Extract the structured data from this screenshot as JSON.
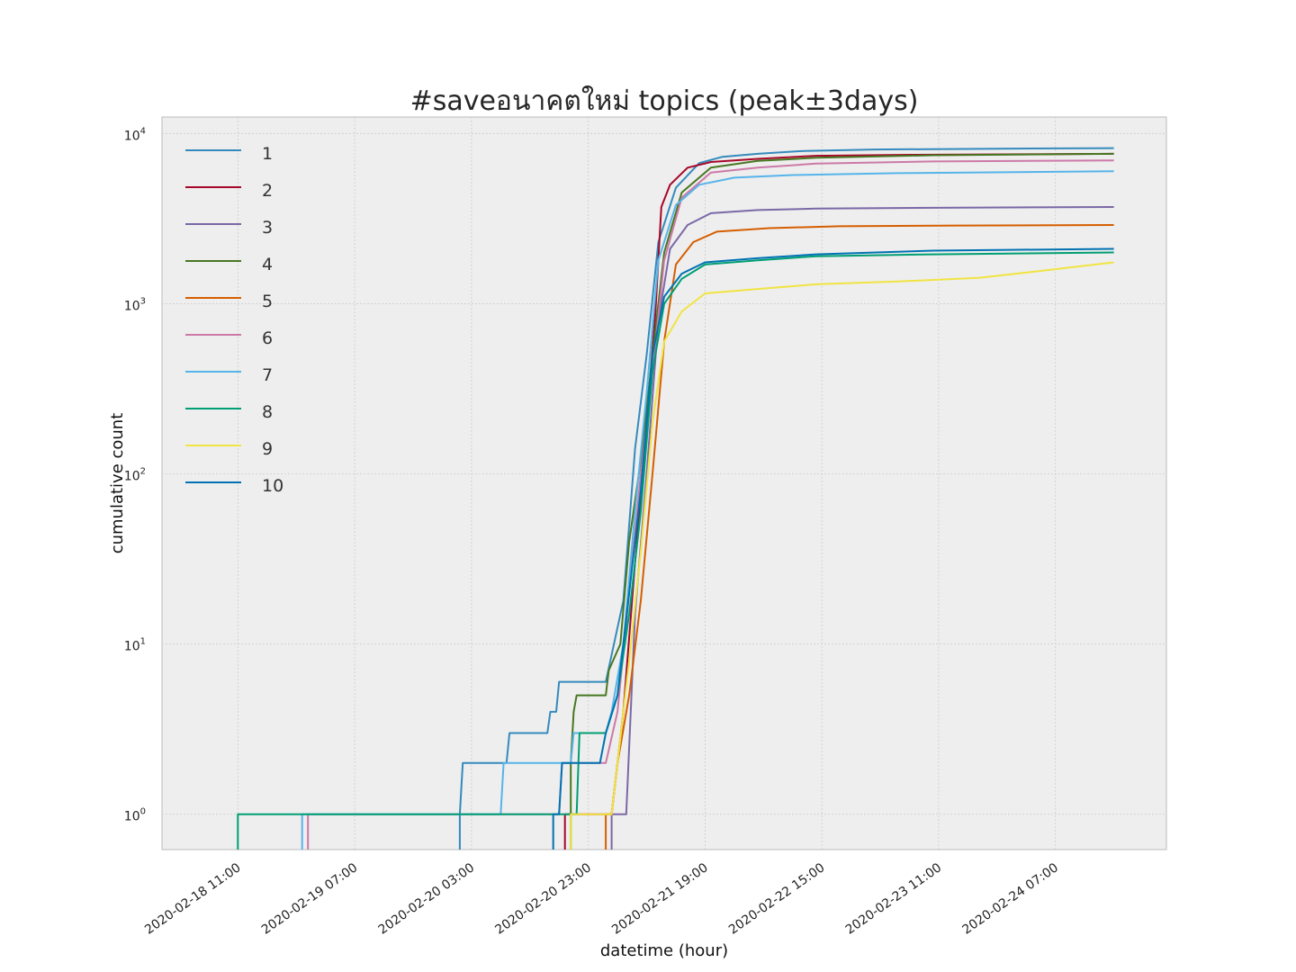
{
  "chart_data": {
    "type": "line",
    "title": "#saveอนาคตใหม่ topics (peak±3days)",
    "xlabel": "datetime (hour)",
    "ylabel": "cumulative count",
    "y_scale": "log",
    "ylim": [
      0.62,
      12500
    ],
    "xlim": [
      "2020-02-17 22:00",
      "2020-02-25 02:00"
    ],
    "grid": true,
    "legend_position": "top-left",
    "x_ticks": [
      "2020-02-18 11:00",
      "2020-02-19 07:00",
      "2020-02-20 03:00",
      "2020-02-20 23:00",
      "2020-02-21 19:00",
      "2020-02-22 15:00",
      "2020-02-23 11:00",
      "2020-02-24 07:00"
    ],
    "y_ticks": [
      {
        "base": "10",
        "exp": "0",
        "value": 1
      },
      {
        "base": "10",
        "exp": "1",
        "value": 10
      },
      {
        "base": "10",
        "exp": "2",
        "value": 100
      },
      {
        "base": "10",
        "exp": "3",
        "value": 1000
      },
      {
        "base": "10",
        "exp": "4",
        "value": 10000
      }
    ],
    "series": [
      {
        "name": "1",
        "color": "#348ABD",
        "points": [
          [
            "2020-02-20 01:00",
            1
          ],
          [
            "2020-02-20 01:30",
            2
          ],
          [
            "2020-02-20 09:00",
            2
          ],
          [
            "2020-02-20 09:30",
            3
          ],
          [
            "2020-02-20 16:00",
            3
          ],
          [
            "2020-02-20 16:30",
            4
          ],
          [
            "2020-02-20 17:30",
            4
          ],
          [
            "2020-02-20 18:00",
            6
          ],
          [
            "2020-02-21 02:00",
            6
          ],
          [
            "2020-02-21 05:00",
            18
          ],
          [
            "2020-02-21 07:00",
            140
          ],
          [
            "2020-02-21 09:00",
            500
          ],
          [
            "2020-02-21 11:00",
            2300
          ],
          [
            "2020-02-21 14:00",
            4800
          ],
          [
            "2020-02-21 18:00",
            6700
          ],
          [
            "2020-02-21 22:00",
            7300
          ],
          [
            "2020-02-22 04:00",
            7600
          ],
          [
            "2020-02-22 12:00",
            7900
          ],
          [
            "2020-02-23 00:00",
            8050
          ],
          [
            "2020-02-24 00:00",
            8150
          ],
          [
            "2020-02-24 17:00",
            8200
          ]
        ]
      },
      {
        "name": "2",
        "color": "#A60628",
        "points": [
          [
            "2020-02-20 19:00",
            1
          ],
          [
            "2020-02-21 03:00",
            1
          ],
          [
            "2020-02-21 05:00",
            4
          ],
          [
            "2020-02-21 07:00",
            30
          ],
          [
            "2020-02-21 09:00",
            200
          ],
          [
            "2020-02-21 10:30",
            900
          ],
          [
            "2020-02-21 11:30",
            3700
          ],
          [
            "2020-02-21 13:00",
            5000
          ],
          [
            "2020-02-21 16:00",
            6300
          ],
          [
            "2020-02-21 20:00",
            6800
          ],
          [
            "2020-02-22 04:00",
            7100
          ],
          [
            "2020-02-22 14:00",
            7400
          ],
          [
            "2020-02-23 06:00",
            7500
          ],
          [
            "2020-02-24 17:00",
            7600
          ]
        ]
      },
      {
        "name": "3",
        "color": "#7A68A6",
        "points": [
          [
            "2020-02-21 03:00",
            1
          ],
          [
            "2020-02-21 05:30",
            1
          ],
          [
            "2020-02-21 07:00",
            15
          ],
          [
            "2020-02-21 09:00",
            100
          ],
          [
            "2020-02-21 11:00",
            800
          ],
          [
            "2020-02-21 13:00",
            2100
          ],
          [
            "2020-02-21 16:00",
            2900
          ],
          [
            "2020-02-21 20:00",
            3400
          ],
          [
            "2020-02-22 04:00",
            3550
          ],
          [
            "2020-02-22 14:00",
            3620
          ],
          [
            "2020-02-23 10:00",
            3660
          ],
          [
            "2020-02-24 17:00",
            3700
          ]
        ]
      },
      {
        "name": "4",
        "color": "#467821",
        "points": [
          [
            "2020-02-20 20:00",
            2
          ],
          [
            "2020-02-20 20:30",
            4
          ],
          [
            "2020-02-20 21:00",
            5
          ],
          [
            "2020-02-21 02:00",
            5
          ],
          [
            "2020-02-21 02:30",
            7
          ],
          [
            "2020-02-21 04:30",
            10
          ],
          [
            "2020-02-21 06:00",
            40
          ],
          [
            "2020-02-21 08:00",
            120
          ],
          [
            "2020-02-21 10:00",
            500
          ],
          [
            "2020-02-21 12:00",
            2000
          ],
          [
            "2020-02-21 15:00",
            4500
          ],
          [
            "2020-02-21 20:00",
            6300
          ],
          [
            "2020-02-22 04:00",
            6900
          ],
          [
            "2020-02-22 14:00",
            7200
          ],
          [
            "2020-02-23 10:00",
            7450
          ],
          [
            "2020-02-24 17:00",
            7600
          ]
        ]
      },
      {
        "name": "5",
        "color": "#D55E00",
        "points": [
          [
            "2020-02-21 02:00",
            1
          ],
          [
            "2020-02-21 03:00",
            1
          ],
          [
            "2020-02-21 04:00",
            2
          ],
          [
            "2020-02-21 06:00",
            5
          ],
          [
            "2020-02-21 08:00",
            18
          ],
          [
            "2020-02-21 10:00",
            100
          ],
          [
            "2020-02-21 12:00",
            600
          ],
          [
            "2020-02-21 14:00",
            1700
          ],
          [
            "2020-02-21 17:00",
            2300
          ],
          [
            "2020-02-21 21:00",
            2650
          ],
          [
            "2020-02-22 06:00",
            2780
          ],
          [
            "2020-02-22 18:00",
            2850
          ],
          [
            "2020-02-23 14:00",
            2880
          ],
          [
            "2020-02-24 17:00",
            2900
          ]
        ]
      },
      {
        "name": "6",
        "color": "#CC79A7",
        "points": [
          [
            "2020-02-18 23:00",
            1
          ],
          [
            "2020-02-20 18:00",
            1
          ],
          [
            "2020-02-20 18:30",
            2
          ],
          [
            "2020-02-21 02:00",
            2
          ],
          [
            "2020-02-21 04:00",
            4
          ],
          [
            "2020-02-21 06:00",
            20
          ],
          [
            "2020-02-21 08:00",
            100
          ],
          [
            "2020-02-21 10:00",
            400
          ],
          [
            "2020-02-21 12:00",
            1800
          ],
          [
            "2020-02-21 15:00",
            4200
          ],
          [
            "2020-02-21 20:00",
            5900
          ],
          [
            "2020-02-22 04:00",
            6300
          ],
          [
            "2020-02-22 14:00",
            6650
          ],
          [
            "2020-02-23 10:00",
            6850
          ],
          [
            "2020-02-24 17:00",
            6950
          ]
        ]
      },
      {
        "name": "7",
        "color": "#56B4E9",
        "points": [
          [
            "2020-02-18 22:00",
            1
          ],
          [
            "2020-02-20 08:00",
            1
          ],
          [
            "2020-02-20 08:30",
            2
          ],
          [
            "2020-02-20 20:00",
            2
          ],
          [
            "2020-02-20 20:30",
            3
          ],
          [
            "2020-02-21 02:00",
            3
          ],
          [
            "2020-02-21 03:00",
            4
          ],
          [
            "2020-02-21 05:00",
            10
          ],
          [
            "2020-02-21 07:00",
            60
          ],
          [
            "2020-02-21 09:00",
            300
          ],
          [
            "2020-02-21 11:00",
            1800
          ],
          [
            "2020-02-21 14:00",
            3800
          ],
          [
            "2020-02-21 18:00",
            5000
          ],
          [
            "2020-02-22 00:00",
            5500
          ],
          [
            "2020-02-22 10:00",
            5700
          ],
          [
            "2020-02-23 04:00",
            5850
          ],
          [
            "2020-02-24 17:00",
            6000
          ]
        ]
      },
      {
        "name": "8",
        "color": "#009E73",
        "points": [
          [
            "2020-02-18 11:00",
            1
          ],
          [
            "2020-02-20 21:00",
            1
          ],
          [
            "2020-02-20 21:30",
            3
          ],
          [
            "2020-02-21 02:00",
            3
          ],
          [
            "2020-02-21 04:00",
            5
          ],
          [
            "2020-02-21 06:00",
            15
          ],
          [
            "2020-02-21 08:00",
            60
          ],
          [
            "2020-02-21 10:00",
            400
          ],
          [
            "2020-02-21 12:00",
            1000
          ],
          [
            "2020-02-21 15:00",
            1400
          ],
          [
            "2020-02-21 19:00",
            1700
          ],
          [
            "2020-02-22 04:00",
            1800
          ],
          [
            "2020-02-22 14:00",
            1900
          ],
          [
            "2020-02-23 10:00",
            1950
          ],
          [
            "2020-02-24 17:00",
            2000
          ]
        ]
      },
      {
        "name": "9",
        "color": "#F0E442",
        "points": [
          [
            "2020-02-20 20:00",
            1
          ],
          [
            "2020-02-21 03:00",
            1
          ],
          [
            "2020-02-21 04:00",
            2
          ],
          [
            "2020-02-21 06:00",
            8
          ],
          [
            "2020-02-21 08:00",
            35
          ],
          [
            "2020-02-21 10:00",
            200
          ],
          [
            "2020-02-21 12:00",
            600
          ],
          [
            "2020-02-21 15:00",
            900
          ],
          [
            "2020-02-21 19:00",
            1150
          ],
          [
            "2020-02-22 04:00",
            1220
          ],
          [
            "2020-02-22 14:00",
            1300
          ],
          [
            "2020-02-23 04:00",
            1350
          ],
          [
            "2020-02-23 18:00",
            1420
          ],
          [
            "2020-02-24 04:00",
            1550
          ],
          [
            "2020-02-24 17:00",
            1750
          ]
        ]
      },
      {
        "name": "10",
        "color": "#0072B2",
        "points": [
          [
            "2020-02-20 17:00",
            1
          ],
          [
            "2020-02-20 18:00",
            1
          ],
          [
            "2020-02-20 18:30",
            2
          ],
          [
            "2020-02-21 01:00",
            2
          ],
          [
            "2020-02-21 02:00",
            3
          ],
          [
            "2020-02-21 04:00",
            5
          ],
          [
            "2020-02-21 06:00",
            20
          ],
          [
            "2020-02-21 08:00",
            80
          ],
          [
            "2020-02-21 10:00",
            500
          ],
          [
            "2020-02-21 12:00",
            1100
          ],
          [
            "2020-02-21 15:00",
            1500
          ],
          [
            "2020-02-21 19:00",
            1750
          ],
          [
            "2020-02-22 04:00",
            1850
          ],
          [
            "2020-02-22 14:00",
            1950
          ],
          [
            "2020-02-23 10:00",
            2050
          ],
          [
            "2020-02-24 17:00",
            2100
          ]
        ]
      }
    ]
  }
}
